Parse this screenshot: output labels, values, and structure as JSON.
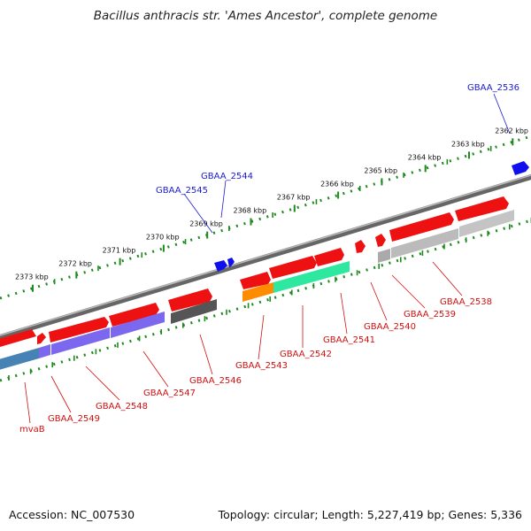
{
  "header": {
    "title": "Bacillus anthracis str. 'Ames Ancestor', complete genome"
  },
  "footer": {
    "accession": "Accession: NC_007530",
    "summary": "Topology: circular; Length: 5,227,419 bp; Genes: 5,336"
  },
  "ruler": {
    "labels": [
      "2373 kbp",
      "2372 kbp",
      "2371 kbp",
      "2370 kbp",
      "2369 kbp",
      "2368 kbp",
      "2367 kbp",
      "2366 kbp",
      "2365 kbp",
      "2364 kbp",
      "2363 kbp",
      "2362 kbp"
    ]
  },
  "genes": {
    "top": [
      "GBAA_2536",
      "GBAA_2544",
      "GBAA_2545"
    ],
    "bottom": [
      "mvaB",
      "GBAA_2549",
      "GBAA_2548",
      "GBAA_2547",
      "GBAA_2546",
      "GBAA_2543",
      "GBAA_2542",
      "GBAA_2541",
      "GBAA_2540",
      "GBAA_2539",
      "GBAA_2538"
    ]
  },
  "colors": {
    "gene": "#ee1111",
    "top_strand": "#1010ee",
    "cds_purple": "#7b68ee",
    "cds_blue": "#4682b4",
    "cds_dark": "#555555",
    "cds_orange": "#ff8c00",
    "cds_green": "#2ee8a0",
    "cds_gray": "#bbbbbb",
    "label_blue": "#1a1ad0",
    "label_red": "#d01010",
    "tick": "#2e8b2e",
    "backbone": "#888888"
  }
}
